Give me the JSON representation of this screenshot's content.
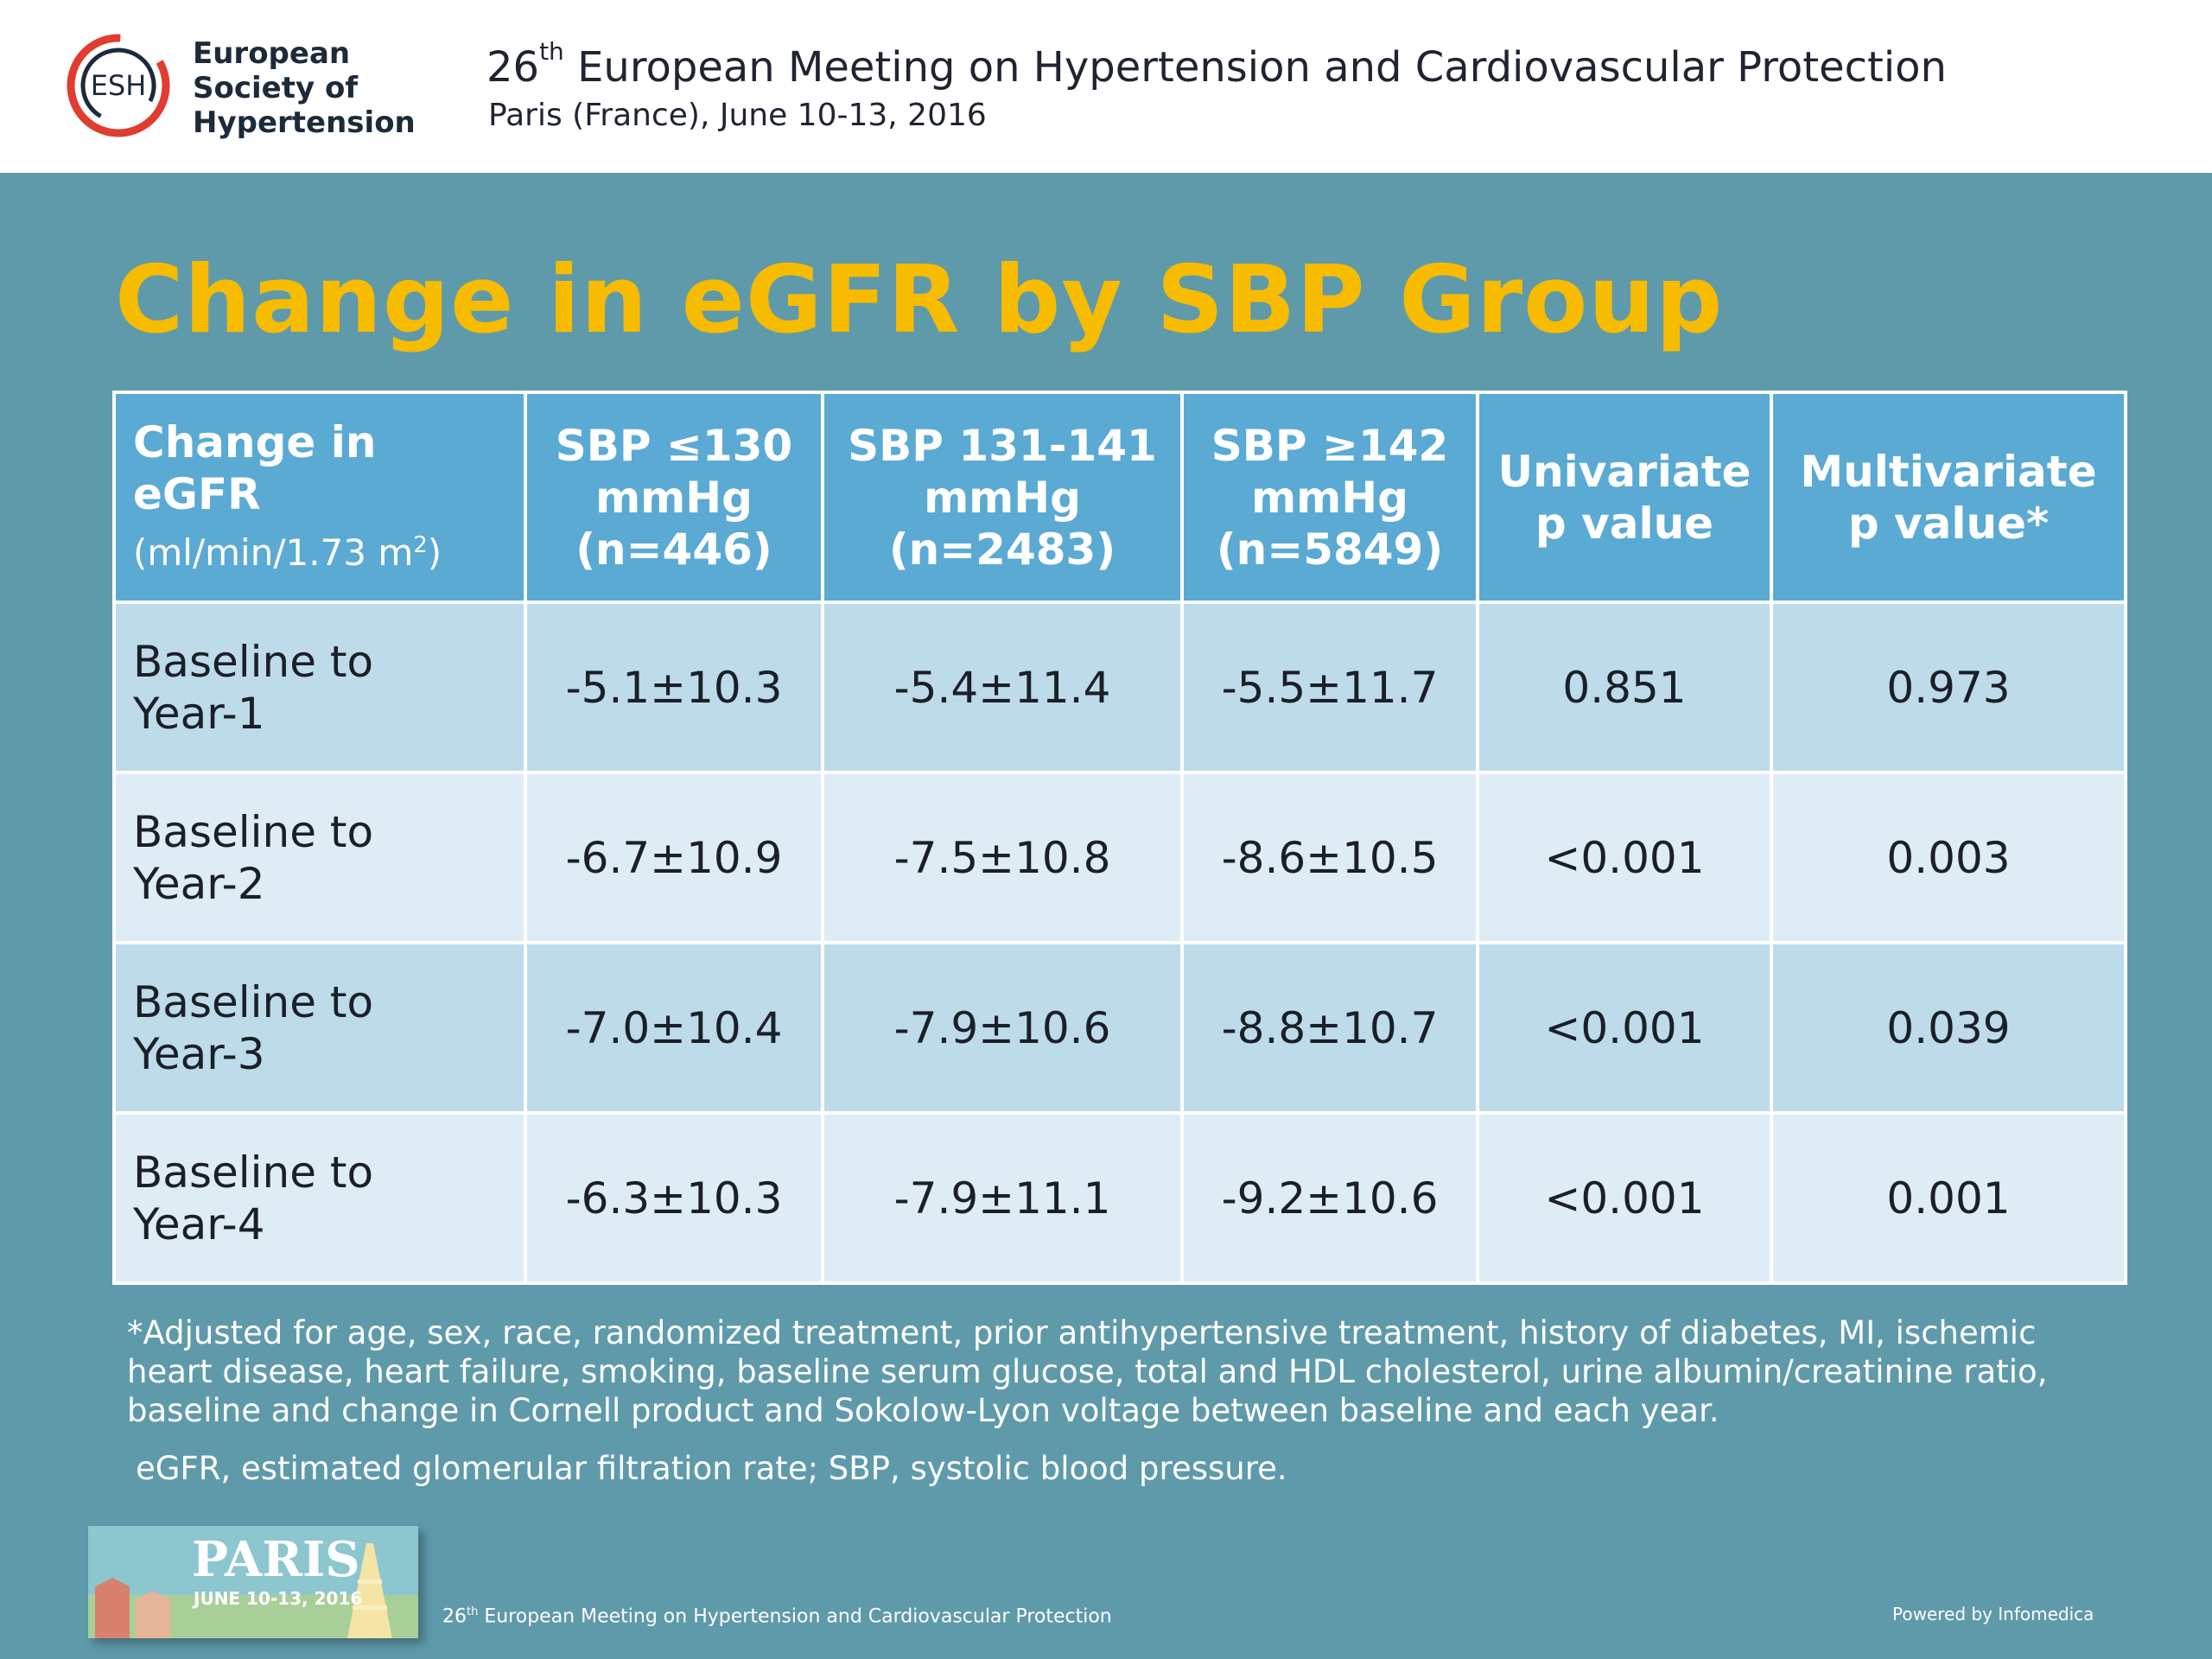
{
  "header": {
    "logo_abbr": "ESH",
    "logo_name_lines": [
      "European",
      "Society of",
      "Hypertension"
    ],
    "meeting_number": "26",
    "meeting_sup": "th",
    "meeting_title_rest": " European Meeting on Hypertension and Cardiovascular Protection",
    "meeting_subtitle": "Paris (France), June 10-13, 2016"
  },
  "slide": {
    "title": "Change in eGFR by SBP Group"
  },
  "table": {
    "header": {
      "col0_line1": "Change in",
      "col0_line2": "eGFR",
      "col0_unit_pre": "(ml/min/1.73 m",
      "col0_unit_sup": "2",
      "col0_unit_post": ")",
      "col1": [
        "SBP ≤130",
        "mmHg",
        "(n=446)"
      ],
      "col2": [
        "SBP 131-141",
        "mmHg",
        "(n=2483)"
      ],
      "col3": [
        "SBP ≥142",
        "mmHg",
        "(n=5849)"
      ],
      "col4": [
        "Univariate",
        "p value"
      ],
      "col5": [
        "Multivariate",
        "p value*"
      ]
    },
    "rows": [
      {
        "label1": "Baseline to",
        "label2": "Year-1",
        "sbp130": "-5.1±10.3",
        "sbp131": "-5.4±11.4",
        "sbp142": "-5.5±11.7",
        "univariate": "0.851",
        "multivariate": "0.973"
      },
      {
        "label1": "Baseline to",
        "label2": "Year-2",
        "sbp130": "-6.7±10.9",
        "sbp131": "-7.5±10.8",
        "sbp142": "-8.6±10.5",
        "univariate": "<0.001",
        "multivariate": "0.003"
      },
      {
        "label1": "Baseline to",
        "label2": "Year-3",
        "sbp130": "-7.0±10.4",
        "sbp131": "-7.9±10.6",
        "sbp142": "-8.8±10.7",
        "univariate": "<0.001",
        "multivariate": "0.039"
      },
      {
        "label1": "Baseline to",
        "label2": "Year-4",
        "sbp130": "-6.3±10.3",
        "sbp131": "-7.9±11.1",
        "sbp142": "-9.2±10.6",
        "univariate": "<0.001",
        "multivariate": "0.001"
      }
    ]
  },
  "footnote": "*Adjusted for age, sex, race, randomized treatment, prior antihypertensive treatment, history of diabetes, MI, ischemic heart disease, heart failure, smoking, baseline serum glucose, total and HDL cholesterol, urine albumin/creatinine ratio, baseline and change in Cornell product and Sokolow-Lyon voltage between baseline and each year.",
  "abbreviations": "eGFR, estimated glomerular filtration rate; SBP, systolic blood pressure.",
  "footer": {
    "badge_city": "PARIS",
    "badge_date": "JUNE 10-13, 2016",
    "meeting_number": "26",
    "meeting_sup": "th",
    "meeting_rest": " European Meeting on Hypertension and Cardiovascular Protection",
    "powered_by": "Powered by Infomedica"
  },
  "colors": {
    "background": "#5f9aaa",
    "title": "#f7bb00",
    "table_header": "#5aaad3",
    "row_dark": "#bedbea",
    "row_light": "#deecf5",
    "logo_ring": "#e03c2f"
  }
}
